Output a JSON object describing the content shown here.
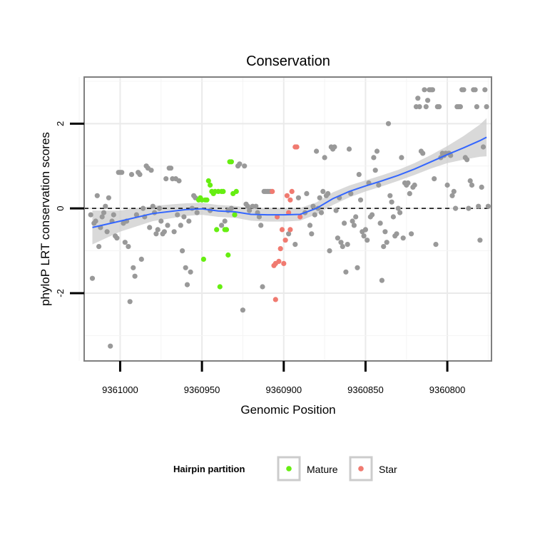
{
  "chart_data": {
    "type": "scatter",
    "title": "Conservation",
    "xlabel": "Genomic Position",
    "ylabel": "phyloP LRT conservation scores",
    "x_reversed": true,
    "xlim": [
      9361022,
      9360773
    ],
    "ylim": [
      -3.6,
      3.1
    ],
    "x_ticks": [
      {
        "value": 9361000,
        "label": "9361000"
      },
      {
        "value": 9360950,
        "label": "9360950"
      },
      {
        "value": 9360900,
        "label": "9360900"
      },
      {
        "value": 9360850,
        "label": "9360850"
      },
      {
        "value": 9360800,
        "label": "9360800"
      }
    ],
    "y_ticks": [
      {
        "value": -2,
        "label": "-2"
      },
      {
        "value": 0,
        "label": "0"
      },
      {
        "value": 2,
        "label": "2"
      }
    ],
    "reference_line": {
      "y": 0,
      "style": "dashed"
    },
    "legend": {
      "title": "Hairpin partition",
      "position": "bottom",
      "entries": [
        {
          "name": "Mature",
          "color": "#66ee11"
        },
        {
          "name": "Star",
          "color": "#f07a70"
        }
      ]
    },
    "colors": {
      "other": "#999999",
      "mature": "#66ee11",
      "star": "#f07a70",
      "smooth": "#3366ff",
      "band": "#cccccc"
    },
    "series": [
      {
        "name": "Other",
        "points": [
          [
            9361018,
            -0.15
          ],
          [
            9361017,
            -1.65
          ],
          [
            9361016,
            -0.35
          ],
          [
            9361015,
            -0.3
          ],
          [
            9361014,
            0.3
          ],
          [
            9361013,
            -0.9
          ],
          [
            9361012,
            -0.45
          ],
          [
            9361011,
            -0.2
          ],
          [
            9361010,
            -0.1
          ],
          [
            9361009,
            0.05
          ],
          [
            9361008,
            -0.55
          ],
          [
            9361007,
            0.25
          ],
          [
            9361006,
            -3.25
          ],
          [
            9361005,
            -0.3
          ],
          [
            9361004,
            -0.15
          ],
          [
            9361003,
            -0.65
          ],
          [
            9361002,
            -0.7
          ],
          [
            9361001,
            0.85
          ],
          [
            9361000,
            0.85
          ],
          [
            9360999,
            0.85
          ],
          [
            9360998,
            -0.35
          ],
          [
            9360997,
            -0.8
          ],
          [
            9360996,
            -0.3
          ],
          [
            9360995,
            -0.9
          ],
          [
            9360994,
            -2.2
          ],
          [
            9360993,
            0.8
          ],
          [
            9360992,
            -1.4
          ],
          [
            9360991,
            -1.6
          ],
          [
            9360990,
            -0.15
          ],
          [
            9360989,
            0.85
          ],
          [
            9360988,
            0.8
          ],
          [
            9360987,
            -1.2
          ],
          [
            9360986,
            0.0
          ],
          [
            9360985,
            -0.2
          ],
          [
            9360984,
            1.0
          ],
          [
            9360983,
            0.95
          ],
          [
            9360982,
            -0.45
          ],
          [
            9360981,
            0.9
          ],
          [
            9360980,
            0.05
          ],
          [
            9360979,
            -0.1
          ],
          [
            9360978,
            -0.6
          ],
          [
            9360977,
            -0.5
          ],
          [
            9360976,
            0.0
          ],
          [
            9360975,
            -0.3
          ],
          [
            9360974,
            -0.6
          ],
          [
            9360973,
            -0.55
          ],
          [
            9360972,
            0.7
          ],
          [
            9360971,
            -0.4
          ],
          [
            9360970,
            0.95
          ],
          [
            9360969,
            0.95
          ],
          [
            9360968,
            0.7
          ],
          [
            9360967,
            -0.55
          ],
          [
            9360966,
            0.7
          ],
          [
            9360965,
            -0.15
          ],
          [
            9360964,
            0.65
          ],
          [
            9360963,
            -0.4
          ],
          [
            9360962,
            -1.0
          ],
          [
            9360961,
            -0.2
          ],
          [
            9360960,
            -1.4
          ],
          [
            9360959,
            -1.8
          ],
          [
            9360958,
            -0.3
          ],
          [
            9360957,
            -1.5
          ],
          [
            9360956,
            0.0
          ],
          [
            9360955,
            0.3
          ],
          [
            9360954,
            0.25
          ],
          [
            9360953,
            -0.1
          ],
          [
            9360945,
            -0.05
          ],
          [
            9360938,
            -0.4
          ],
          [
            9360936,
            -0.3
          ],
          [
            9360934,
            -0.05
          ],
          [
            9360932,
            0.0
          ],
          [
            9360930,
            -0.15
          ],
          [
            9360928,
            1.0
          ],
          [
            9360927,
            1.05
          ],
          [
            9360925,
            -2.4
          ],
          [
            9360924,
            1.0
          ],
          [
            9360923,
            0.1
          ],
          [
            9360922,
            0.05
          ],
          [
            9360921,
            -0.05
          ],
          [
            9360919,
            0.05
          ],
          [
            9360917,
            0.05
          ],
          [
            9360916,
            -0.1
          ],
          [
            9360915,
            -0.2
          ],
          [
            9360914,
            -0.4
          ],
          [
            9360913,
            -1.85
          ],
          [
            9360912,
            0.4
          ],
          [
            9360911,
            0.4
          ],
          [
            9360910,
            0.4
          ],
          [
            9360909,
            0.4
          ],
          [
            9360908,
            0.4
          ],
          [
            9360897,
            -0.6
          ],
          [
            9360893,
            -0.85
          ],
          [
            9360891,
            0.25
          ],
          [
            9360887,
            -0.1
          ],
          [
            9360886,
            0.35
          ],
          [
            9360884,
            -0.4
          ],
          [
            9360883,
            -0.6
          ],
          [
            9360882,
            0.05
          ],
          [
            9360881,
            -0.15
          ],
          [
            9360880,
            1.35
          ],
          [
            9360879,
            0.0
          ],
          [
            9360878,
            0.25
          ],
          [
            9360877,
            -0.1
          ],
          [
            9360876,
            0.4
          ],
          [
            9360875,
            1.2
          ],
          [
            9360874,
            0.3
          ],
          [
            9360873,
            0.35
          ],
          [
            9360872,
            -1.0
          ],
          [
            9360871,
            1.45
          ],
          [
            9360870,
            1.4
          ],
          [
            9360869,
            1.45
          ],
          [
            9360868,
            -0.05
          ],
          [
            9360867,
            -0.7
          ],
          [
            9360866,
            0.25
          ],
          [
            9360865,
            -0.8
          ],
          [
            9360864,
            -0.9
          ],
          [
            9360863,
            -0.35
          ],
          [
            9360862,
            -1.5
          ],
          [
            9360861,
            -0.85
          ],
          [
            9360860,
            1.4
          ],
          [
            9360859,
            0.35
          ],
          [
            9360858,
            -0.3
          ],
          [
            9360857,
            -0.4
          ],
          [
            9360856,
            -0.2
          ],
          [
            9360855,
            -1.4
          ],
          [
            9360854,
            0.8
          ],
          [
            9360853,
            0.2
          ],
          [
            9360852,
            -0.55
          ],
          [
            9360851,
            -0.65
          ],
          [
            9360850,
            -0.5
          ],
          [
            9360849,
            -0.75
          ],
          [
            9360848,
            0.6
          ],
          [
            9360847,
            -0.2
          ],
          [
            9360846,
            -0.15
          ],
          [
            9360845,
            1.2
          ],
          [
            9360844,
            0.9
          ],
          [
            9360843,
            1.35
          ],
          [
            9360842,
            0.55
          ],
          [
            9360841,
            -0.35
          ],
          [
            9360840,
            -1.7
          ],
          [
            9360839,
            -0.9
          ],
          [
            9360838,
            -0.55
          ],
          [
            9360837,
            -0.8
          ],
          [
            9360836,
            2.0
          ],
          [
            9360835,
            0.3
          ],
          [
            9360834,
            0.15
          ],
          [
            9360833,
            -0.2
          ],
          [
            9360832,
            -0.65
          ],
          [
            9360831,
            -0.6
          ],
          [
            9360830,
            0.0
          ],
          [
            9360829,
            -0.1
          ],
          [
            9360828,
            1.2
          ],
          [
            9360827,
            -0.7
          ],
          [
            9360826,
            0.6
          ],
          [
            9360825,
            0.55
          ],
          [
            9360824,
            0.6
          ],
          [
            9360823,
            0.35
          ],
          [
            9360822,
            -0.6
          ],
          [
            9360821,
            0.5
          ],
          [
            9360820,
            0.55
          ],
          [
            9360819,
            2.4
          ],
          [
            9360818,
            2.6
          ],
          [
            9360817,
            2.4
          ],
          [
            9360816,
            1.35
          ],
          [
            9360815,
            1.3
          ],
          [
            9360814,
            2.8
          ],
          [
            9360813,
            2.4
          ],
          [
            9360812,
            2.55
          ],
          [
            9360811,
            2.8
          ],
          [
            9360810,
            2.8
          ],
          [
            9360809,
            2.8
          ],
          [
            9360808,
            0.7
          ],
          [
            9360807,
            -0.85
          ],
          [
            9360806,
            2.4
          ],
          [
            9360805,
            2.4
          ],
          [
            9360804,
            1.2
          ],
          [
            9360803,
            1.3
          ],
          [
            9360802,
            1.25
          ],
          [
            9360801,
            1.3
          ],
          [
            9360800,
            0.55
          ],
          [
            9360799,
            1.3
          ],
          [
            9360798,
            1.25
          ],
          [
            9360797,
            0.3
          ],
          [
            9360796,
            0.4
          ],
          [
            9360795,
            0.0
          ],
          [
            9360794,
            2.4
          ],
          [
            9360793,
            2.4
          ],
          [
            9360792,
            2.4
          ],
          [
            9360791,
            2.8
          ],
          [
            9360790,
            2.8
          ],
          [
            9360789,
            1.2
          ],
          [
            9360788,
            1.15
          ],
          [
            9360787,
            0.0
          ],
          [
            9360786,
            0.65
          ],
          [
            9360785,
            0.55
          ],
          [
            9360784,
            2.8
          ],
          [
            9360783,
            2.8
          ],
          [
            9360782,
            2.4
          ],
          [
            9360781,
            0.05
          ],
          [
            9360780,
            -0.75
          ],
          [
            9360779,
            0.5
          ],
          [
            9360778,
            1.45
          ],
          [
            9360777,
            2.8
          ],
          [
            9360776,
            2.4
          ],
          [
            9360775,
            0.05
          ]
        ]
      },
      {
        "name": "Mature",
        "points": [
          [
            9360952,
            0.2
          ],
          [
            9360951,
            0.25
          ],
          [
            9360950,
            0.2
          ],
          [
            9360949,
            -1.2
          ],
          [
            9360948,
            0.2
          ],
          [
            9360947,
            0.2
          ],
          [
            9360946,
            0.65
          ],
          [
            9360945,
            0.55
          ],
          [
            9360944,
            0.4
          ],
          [
            9360943,
            0.35
          ],
          [
            9360942,
            0.4
          ],
          [
            9360941,
            -0.5
          ],
          [
            9360940,
            0.4
          ],
          [
            9360939,
            -1.85
          ],
          [
            9360938,
            0.4
          ],
          [
            9360937,
            0.4
          ],
          [
            9360936,
            -0.5
          ],
          [
            9360935,
            -0.5
          ],
          [
            9360934,
            -1.1
          ],
          [
            9360933,
            1.1
          ],
          [
            9360932,
            1.1
          ],
          [
            9360931,
            0.35
          ],
          [
            9360930,
            -0.15
          ],
          [
            9360929,
            0.4
          ]
        ]
      },
      {
        "name": "Star",
        "points": [
          [
            9360907,
            0.4
          ],
          [
            9360906,
            -1.35
          ],
          [
            9360905,
            -1.3
          ],
          [
            9360904,
            -0.2
          ],
          [
            9360903,
            -1.25
          ],
          [
            9360902,
            -0.95
          ],
          [
            9360901,
            -0.5
          ],
          [
            9360900,
            -1.3
          ],
          [
            9360899,
            -0.75
          ],
          [
            9360898,
            0.3
          ],
          [
            9360897,
            -0.1
          ],
          [
            9360896,
            -0.5
          ],
          [
            9360895,
            0.4
          ],
          [
            9360893,
            1.45
          ],
          [
            9360892,
            1.45
          ],
          [
            9360890,
            -0.2
          ],
          [
            9360905,
            -2.15
          ],
          [
            9360896,
            0.2
          ]
        ]
      },
      {
        "name": "Smooth fit",
        "line": [
          [
            9361017,
            -0.45
          ],
          [
            9361000,
            -0.3
          ],
          [
            9360980,
            -0.12
          ],
          [
            9360960,
            -0.03
          ],
          [
            9360950,
            -0.01
          ],
          [
            9360940,
            -0.06
          ],
          [
            9360930,
            -0.08
          ],
          [
            9360920,
            -0.14
          ],
          [
            9360910,
            -0.15
          ],
          [
            9360900,
            -0.15
          ],
          [
            9360890,
            -0.14
          ],
          [
            9360880,
            0.0
          ],
          [
            9360870,
            0.23
          ],
          [
            9360860,
            0.4
          ],
          [
            9360850,
            0.53
          ],
          [
            9360840,
            0.65
          ],
          [
            9360830,
            0.78
          ],
          [
            9360820,
            0.93
          ],
          [
            9360810,
            1.1
          ],
          [
            9360800,
            1.27
          ],
          [
            9360790,
            1.43
          ],
          [
            9360780,
            1.6
          ],
          [
            9360776,
            1.68
          ]
        ],
        "band_halfwidth": [
          0.4,
          0.25,
          0.18,
          0.15,
          0.14,
          0.14,
          0.14,
          0.15,
          0.16,
          0.16,
          0.15,
          0.14,
          0.15,
          0.14,
          0.13,
          0.13,
          0.13,
          0.14,
          0.16,
          0.2,
          0.28,
          0.38,
          0.45
        ]
      }
    ]
  }
}
